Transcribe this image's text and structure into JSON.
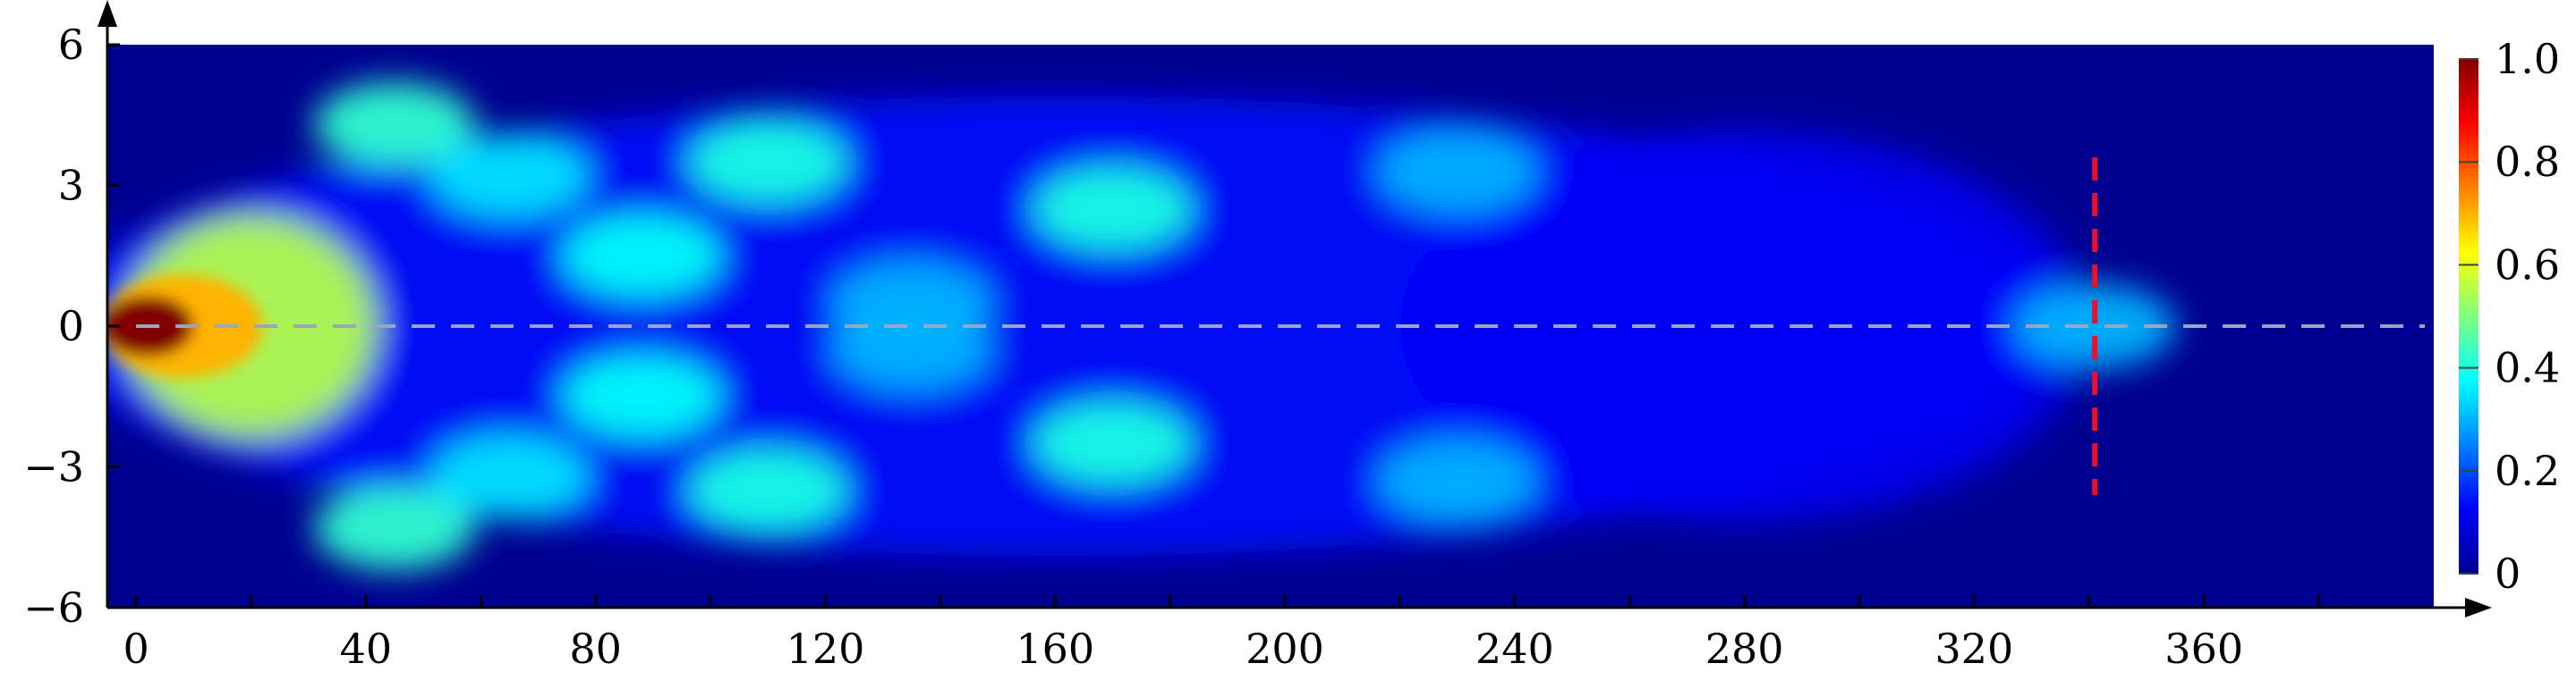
{
  "chart_data": {
    "type": "heatmap",
    "title": "",
    "xlabel": "",
    "ylabel": "",
    "xlim": [
      -5,
      400
    ],
    "ylim": [
      -6,
      6
    ],
    "x_ticks": [
      {
        "value": 0,
        "label": "0"
      },
      {
        "value": 40,
        "label": "40"
      },
      {
        "value": 80,
        "label": "80"
      },
      {
        "value": 120,
        "label": "120"
      },
      {
        "value": 160,
        "label": "160"
      },
      {
        "value": 200,
        "label": "200"
      },
      {
        "value": 240,
        "label": "240"
      },
      {
        "value": 280,
        "label": "280"
      },
      {
        "value": 320,
        "label": "320"
      },
      {
        "value": 360,
        "label": "360"
      }
    ],
    "y_ticks": [
      {
        "value": 6,
        "label": "6"
      },
      {
        "value": 3,
        "label": "3"
      },
      {
        "value": 0,
        "label": "0"
      },
      {
        "value": -3,
        "label": "−3"
      },
      {
        "value": -6,
        "label": "−6"
      }
    ],
    "colorbar": {
      "colormap": "jet",
      "range": [
        0,
        1
      ],
      "ticks": [
        {
          "value": 1.0,
          "label": "1.0"
        },
        {
          "value": 0.8,
          "label": "0.8"
        },
        {
          "value": 0.6,
          "label": "0.6"
        },
        {
          "value": 0.4,
          "label": "0.4"
        },
        {
          "value": 0.2,
          "label": "0.2"
        },
        {
          "value": 0,
          "label": "0"
        }
      ]
    },
    "hot_spots": [
      {
        "x": 2,
        "y": 0,
        "intensity": 1.0
      },
      {
        "x": 20,
        "y": 0,
        "intensity": 0.55
      },
      {
        "x": 45,
        "y": 4.3,
        "intensity": 0.42
      },
      {
        "x": 45,
        "y": -4.3,
        "intensity": 0.42
      },
      {
        "x": 65,
        "y": 3.2,
        "intensity": 0.35
      },
      {
        "x": 65,
        "y": -3.2,
        "intensity": 0.35
      },
      {
        "x": 88,
        "y": 1.5,
        "intensity": 0.38
      },
      {
        "x": 88,
        "y": -1.5,
        "intensity": 0.38
      },
      {
        "x": 110,
        "y": 3.5,
        "intensity": 0.4
      },
      {
        "x": 110,
        "y": -3.5,
        "intensity": 0.4
      },
      {
        "x": 135,
        "y": 0.5,
        "intensity": 0.3
      },
      {
        "x": 135,
        "y": -0.5,
        "intensity": 0.3
      },
      {
        "x": 170,
        "y": 2.5,
        "intensity": 0.4
      },
      {
        "x": 170,
        "y": -2.5,
        "intensity": 0.4
      },
      {
        "x": 230,
        "y": 3.3,
        "intensity": 0.3
      },
      {
        "x": 230,
        "y": -3.3,
        "intensity": 0.3
      },
      {
        "x": 341,
        "y": 0,
        "intensity": 0.3
      }
    ],
    "reference_lines": [
      {
        "orientation": "horizontal",
        "y": 0,
        "style": "dashed",
        "color": "#9aa6c0"
      },
      {
        "orientation": "vertical",
        "x": 341,
        "y_range": [
          -3.6,
          3.6
        ],
        "style": "dashed",
        "color": "#e8102a"
      }
    ],
    "colors": {
      "background_low": "#00008f",
      "axis": "#000000"
    }
  }
}
